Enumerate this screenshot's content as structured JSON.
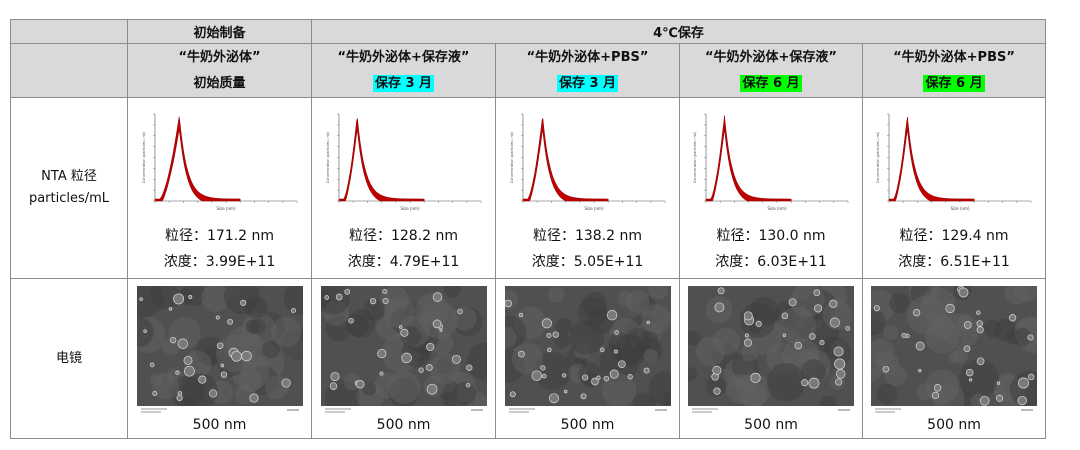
{
  "header": {
    "initial_prep": "初始制备",
    "storage_4c": "4℃保存",
    "columns": [
      {
        "line1": "“牛奶外泌体”",
        "line2": "初始质量",
        "highlight": "none"
      },
      {
        "line1": "“牛奶外泌体+保存液”",
        "line2": "保存 3 月",
        "highlight": "cyan"
      },
      {
        "line1": "“牛奶外泌体+PBS”",
        "line2": "保存 3 月",
        "highlight": "cyan"
      },
      {
        "line1": "“牛奶外泌体+保存液”",
        "line2": "保存 6 月",
        "highlight": "green"
      },
      {
        "line1": "“牛奶外泌体+PBS”",
        "line2": "保存 6 月",
        "highlight": "green"
      }
    ]
  },
  "rows": {
    "nta": {
      "label_line1": "NTA 粒径",
      "label_line2": "particles/mL"
    },
    "em": {
      "label": "电镜"
    }
  },
  "nta_results": [
    {
      "size": "粒径：171.2 nm",
      "conc": "浓度：3.99E+11"
    },
    {
      "size": "粒径：128.2 nm",
      "conc": "浓度：4.79E+11"
    },
    {
      "size": "粒径：138.2 nm",
      "conc": "浓度：5.05E+11"
    },
    {
      "size": "粒径：130.0 nm",
      "conc": "浓度：6.03E+11"
    },
    {
      "size": "粒径：129.4 nm",
      "conc": "浓度：6.51E+11"
    }
  ],
  "em_scale": [
    "500 nm",
    "500 nm",
    "500 nm",
    "500 nm",
    "500 nm"
  ],
  "chart_data": [
    {
      "type": "area",
      "xlabel": "Size (nm)",
      "ylabel": "Concentration (particles / ml)",
      "peak_x": 171,
      "xlim": [
        0,
        1000
      ]
    },
    {
      "type": "area",
      "xlabel": "Size (nm)",
      "ylabel": "Concentration (particles / ml)",
      "peak_x": 128,
      "xlim": [
        0,
        1000
      ]
    },
    {
      "type": "area",
      "xlabel": "Size (nm)",
      "ylabel": "Concentration (particles / ml)",
      "peak_x": 138,
      "xlim": [
        0,
        1000
      ]
    },
    {
      "type": "area",
      "xlabel": "Size (nm)",
      "ylabel": "Concentration (particles / ml)",
      "peak_x": 130,
      "xlim": [
        0,
        1000
      ]
    },
    {
      "type": "area",
      "xlabel": "Size (nm)",
      "ylabel": "Concentration (particles / ml)",
      "peak_x": 129,
      "xlim": [
        0,
        1000
      ]
    }
  ]
}
